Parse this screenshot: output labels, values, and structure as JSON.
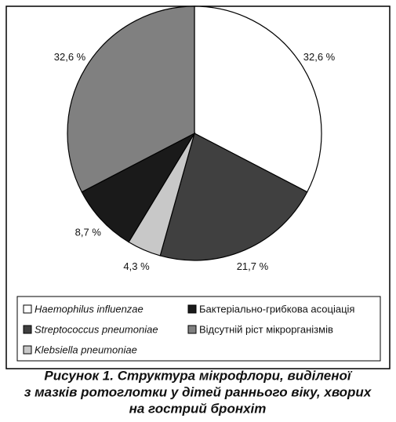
{
  "chart_data": {
    "type": "pie",
    "title": [
      "Рисунок 1. Структура мікрофлори, виділеної",
      "з мазків ротоглотки у дітей раннього віку, хворих",
      "на гострий бронхіт"
    ],
    "categories": [
      "Haemophilus influenzae",
      "Streptococcus pneumoniae",
      "Klebsiella pneumoniae",
      "Бактеріально-грибкова асоціація",
      "Відсутній ріст мікрорганізмів"
    ],
    "values": [
      32.6,
      21.7,
      4.3,
      8.7,
      32.6
    ],
    "value_labels": [
      "32,6 %",
      "21,7 %",
      "4,3 %",
      "8,7 %",
      "32,6 %"
    ],
    "colors": [
      "#ffffff",
      "#404040",
      "#c8c8c8",
      "#1a1a1a",
      "#808080"
    ]
  }
}
